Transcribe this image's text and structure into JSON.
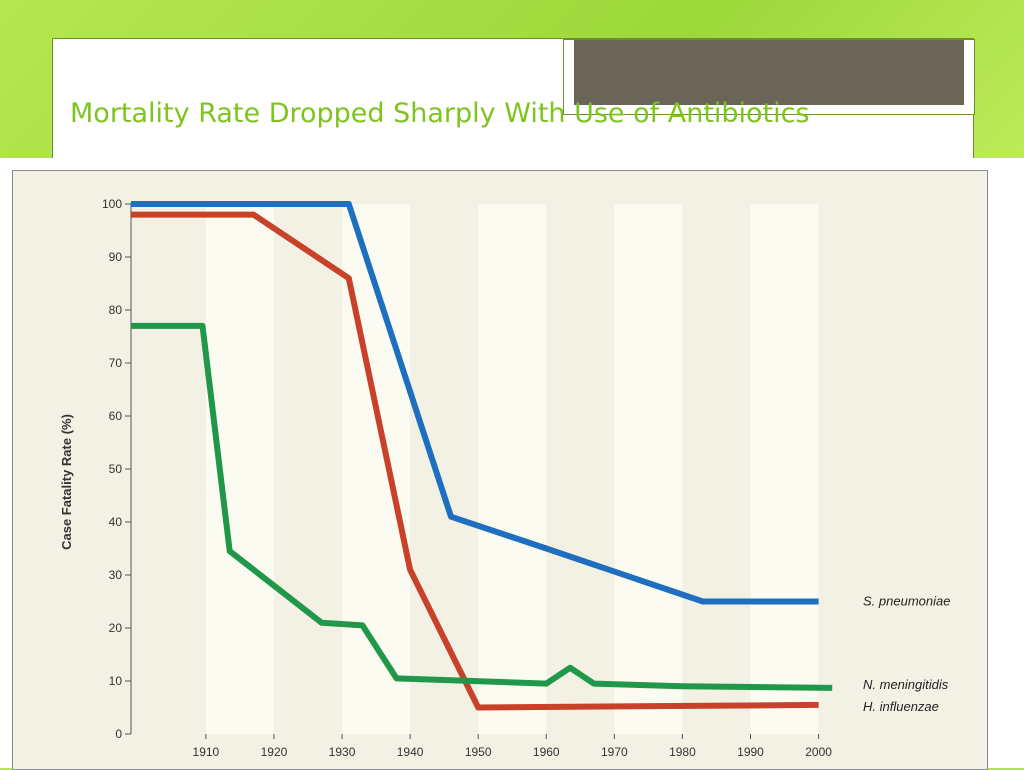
{
  "slide": {
    "title": "Mortality Rate Dropped Sharply With Use of Antibiotics"
  },
  "colors": {
    "title": "#7dc51e",
    "background": "#a9e144",
    "plot_background": "#f2f1e4",
    "band": "#fbfbf1"
  },
  "chart_data": {
    "type": "line",
    "title": "",
    "xlabel": "",
    "ylabel": "Case Fatality Rate (%)",
    "xlim": [
      1899,
      2003
    ],
    "ylim": [
      0,
      100
    ],
    "xticks": [
      1910,
      1920,
      1930,
      1940,
      1950,
      1960,
      1970,
      1980,
      1990,
      2000
    ],
    "yticks": [
      0,
      10,
      20,
      30,
      40,
      50,
      60,
      70,
      80,
      90,
      100
    ],
    "grid": false,
    "background_bands": [
      [
        1910,
        1920
      ],
      [
        1930,
        1940
      ],
      [
        1950,
        1960
      ],
      [
        1970,
        1980
      ],
      [
        1990,
        2000
      ]
    ],
    "series": [
      {
        "name": "S. pneumoniae",
        "color": "#1f6fc0",
        "x": [
          1899,
          1931,
          1946,
          1960,
          1983,
          2000
        ],
        "y": [
          100,
          100,
          41,
          35,
          25,
          25
        ]
      },
      {
        "name": "H. influenzae",
        "color": "#c8422a",
        "x": [
          1899,
          1917,
          1931,
          1940,
          1950,
          2000
        ],
        "y": [
          98,
          98,
          86,
          31,
          5,
          5.5
        ]
      },
      {
        "name": "N. meningitidis",
        "color": "#21974a",
        "x": [
          1899,
          1909.5,
          1913.5,
          1927,
          1933,
          1938,
          1960,
          1963.5,
          1967,
          1980,
          2002
        ],
        "y": [
          77,
          77,
          34.5,
          21,
          20.5,
          10.5,
          9.5,
          12.5,
          9.5,
          9,
          8.7
        ]
      }
    ]
  }
}
